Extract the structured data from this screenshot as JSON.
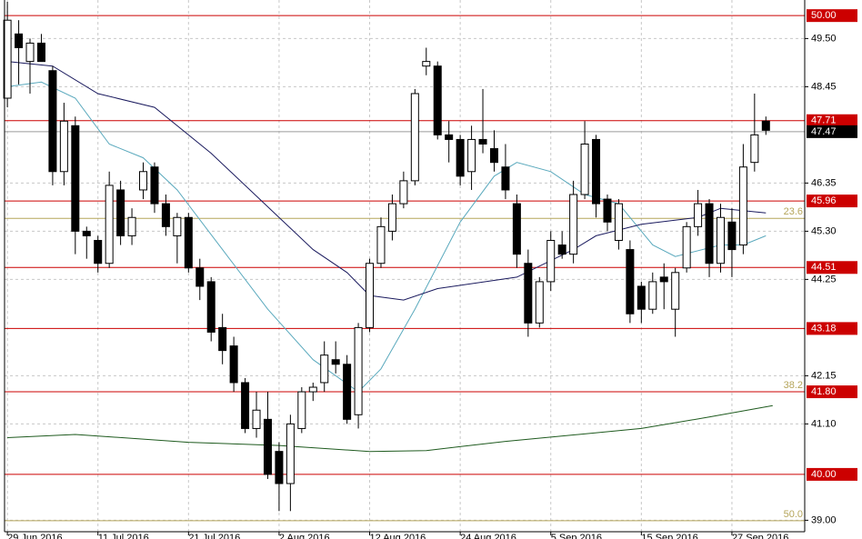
{
  "chart_data": {
    "type": "candlestick",
    "xlim": [
      -0.25,
      70.43
    ],
    "xticks": [
      {
        "value": 0,
        "label": "29 Jun 2016"
      },
      {
        "value": 8,
        "label": "11 Jul 2016"
      },
      {
        "value": 16,
        "label": "21 Jul 2016"
      },
      {
        "value": 24,
        "label": "2 Aug 2016"
      },
      {
        "value": 32,
        "label": "12 Aug 2016"
      },
      {
        "value": 40,
        "label": "24 Aug 2016"
      },
      {
        "value": 48,
        "label": "5 Sep 2016"
      },
      {
        "value": 56,
        "label": "15 Sep 2016"
      },
      {
        "value": 64,
        "label": "27 Sep 2016"
      }
    ],
    "ylim": [
      38.75,
      50.34
    ],
    "yticks": [
      {
        "value": 49.5,
        "label": "49.50"
      },
      {
        "value": 48.45,
        "label": "48.45"
      },
      {
        "value": 46.35,
        "label": "46.35"
      },
      {
        "value": 45.3,
        "label": "45.30"
      },
      {
        "value": 44.25,
        "label": "44.25"
      },
      {
        "value": 42.15,
        "label": "42.15"
      },
      {
        "value": 41.1,
        "label": "41.10"
      },
      {
        "value": 39,
        "label": "39.00"
      }
    ],
    "grid": true,
    "candles": {
      "up_color": "#ffffff",
      "down_color": "#000000",
      "open": [
        48.2,
        49.6,
        49.0,
        49.4,
        48.8,
        46.6,
        47.6,
        45.3,
        45.1,
        44.6,
        46.2,
        45.2,
        46.2,
        46.7,
        45.9,
        45.2,
        45.6,
        44.5,
        44.2,
        43.2,
        42.8,
        42.0,
        41.0,
        41.2,
        40.5,
        39.8,
        41.0,
        41.8,
        42.0,
        42.5,
        42.4,
        41.3,
        43.2,
        44.6,
        45.3,
        45.9,
        46.4,
        48.9,
        48.9,
        47.4,
        47.3,
        46.6,
        47.3,
        47.1,
        46.7,
        45.9,
        44.6,
        43.3,
        44.2,
        45.0,
        44.8,
        46.1,
        47.3,
        46.0,
        45.1,
        44.9,
        44.1,
        43.6,
        44.3,
        43.6,
        44.5,
        45.4,
        45.9,
        44.6,
        45.5,
        45.0,
        46.8,
        47.7
      ],
      "high": [
        50.3,
        49.9,
        49.5,
        49.6,
        48.9,
        48.1,
        47.8,
        45.4,
        45.2,
        46.6,
        46.4,
        45.8,
        46.8,
        46.8,
        46.1,
        45.7,
        45.7,
        44.7,
        44.3,
        43.5,
        43.0,
        42.1,
        41.8,
        41.8,
        40.7,
        41.3,
        41.9,
        42.0,
        42.9,
        42.9,
        42.6,
        43.3,
        44.7,
        45.6,
        46.1,
        46.6,
        48.4,
        49.3,
        49.0,
        47.7,
        47.4,
        47.6,
        48.4,
        47.5,
        47.2,
        46.1,
        44.9,
        44.3,
        45.3,
        45.3,
        46.4,
        47.7,
        47.4,
        46.1,
        46.0,
        45.1,
        44.2,
        44.4,
        44.6,
        44.5,
        45.5,
        46.2,
        46.0,
        45.9,
        45.8,
        47.2,
        48.3,
        47.8
      ],
      "low": [
        48.0,
        48.5,
        48.3,
        49.0,
        46.3,
        46.3,
        44.8,
        44.7,
        44.4,
        44.5,
        45.0,
        45.0,
        46.0,
        45.7,
        45.2,
        44.6,
        44.4,
        43.8,
        42.9,
        42.4,
        41.8,
        40.9,
        40.8,
        39.9,
        39.2,
        39.2,
        40.9,
        41.6,
        41.8,
        42.2,
        41.1,
        41.0,
        43.1,
        44.5,
        45.1,
        45.8,
        46.3,
        48.7,
        47.3,
        46.8,
        46.3,
        46.2,
        47.0,
        46.6,
        46.0,
        44.5,
        43.0,
        43.2,
        44.0,
        44.7,
        44.6,
        46.0,
        45.6,
        45.3,
        44.9,
        43.3,
        43.3,
        43.5,
        43.6,
        43.0,
        44.4,
        45.2,
        44.3,
        44.4,
        44.3,
        44.8,
        46.6,
        47.4
      ],
      "close": [
        49.9,
        49.3,
        49.4,
        49.0,
        46.6,
        47.7,
        45.3,
        45.2,
        44.6,
        46.3,
        45.2,
        45.6,
        46.6,
        45.9,
        45.4,
        45.6,
        44.5,
        44.1,
        43.1,
        42.7,
        42.0,
        41.0,
        41.4,
        40.0,
        39.8,
        41.1,
        41.8,
        41.9,
        42.6,
        42.4,
        41.2,
        43.2,
        44.6,
        45.4,
        45.9,
        46.4,
        48.3,
        49.0,
        47.4,
        47.3,
        46.5,
        47.3,
        47.2,
        46.8,
        46.2,
        44.8,
        43.3,
        44.2,
        45.1,
        44.8,
        46.1,
        47.2,
        45.9,
        45.5,
        45.9,
        43.5,
        43.6,
        44.2,
        44.2,
        44.4,
        45.4,
        45.9,
        44.6,
        45.6,
        44.9,
        46.7,
        47.4,
        47.5
      ]
    },
    "moving_averages": [
      {
        "color": "#5aa9bd",
        "x": [
          0,
          3,
          6,
          9,
          12,
          15,
          19,
          23,
          27,
          31,
          33,
          36,
          40,
          43,
          45,
          48,
          51,
          54,
          57,
          59,
          63,
          65,
          67
        ],
        "values": [
          48.45,
          48.55,
          48.2,
          47.2,
          46.9,
          46.2,
          44.9,
          43.6,
          42.5,
          41.8,
          42.3,
          43.6,
          45.5,
          46.5,
          46.8,
          46.6,
          46.1,
          45.9,
          45.0,
          44.75,
          45.0,
          45.0,
          45.2
        ]
      },
      {
        "color": "#1a1a5e",
        "x": [
          0,
          4,
          8,
          13,
          18,
          24,
          27,
          30,
          32,
          35,
          38,
          45,
          50,
          52,
          56,
          61,
          63,
          67
        ],
        "values": [
          49.0,
          48.9,
          48.3,
          48.0,
          47.0,
          45.6,
          44.9,
          44.4,
          43.9,
          43.8,
          44.05,
          44.3,
          44.9,
          45.2,
          45.45,
          45.6,
          45.8,
          45.7
        ]
      },
      {
        "color": "#1e5a1e",
        "x": [
          0,
          6,
          16,
          24,
          32,
          37,
          44,
          56,
          62,
          67.6
        ],
        "values": [
          40.8,
          40.87,
          40.7,
          40.63,
          40.5,
          40.52,
          40.72,
          41.0,
          41.25,
          41.5
        ]
      }
    ],
    "levels": [
      {
        "value": 50,
        "label": "50.00",
        "color": "#cc0000"
      },
      {
        "value": 47.71,
        "label": "47.71",
        "color": "#cc0000"
      },
      {
        "value": 45.96,
        "label": "45.96",
        "color": "#cc0000"
      },
      {
        "value": 44.51,
        "label": "44.51",
        "color": "#cc0000"
      },
      {
        "value": 43.18,
        "label": "43.18",
        "color": "#cc0000"
      },
      {
        "value": 41.8,
        "label": "41.80",
        "color": "#cc0000"
      },
      {
        "value": 40,
        "label": "40.00",
        "color": "#cc0000"
      }
    ],
    "fibonacci": {
      "color": "#b5a55a",
      "levels": [
        {
          "name": "23.6",
          "value": 45.58
        },
        {
          "name": "38.2",
          "value": 41.8
        },
        {
          "name": "50.0",
          "value": 38.99
        }
      ]
    },
    "current_price": {
      "value": 47.47,
      "label": "47.47",
      "color": "#000000"
    }
  }
}
